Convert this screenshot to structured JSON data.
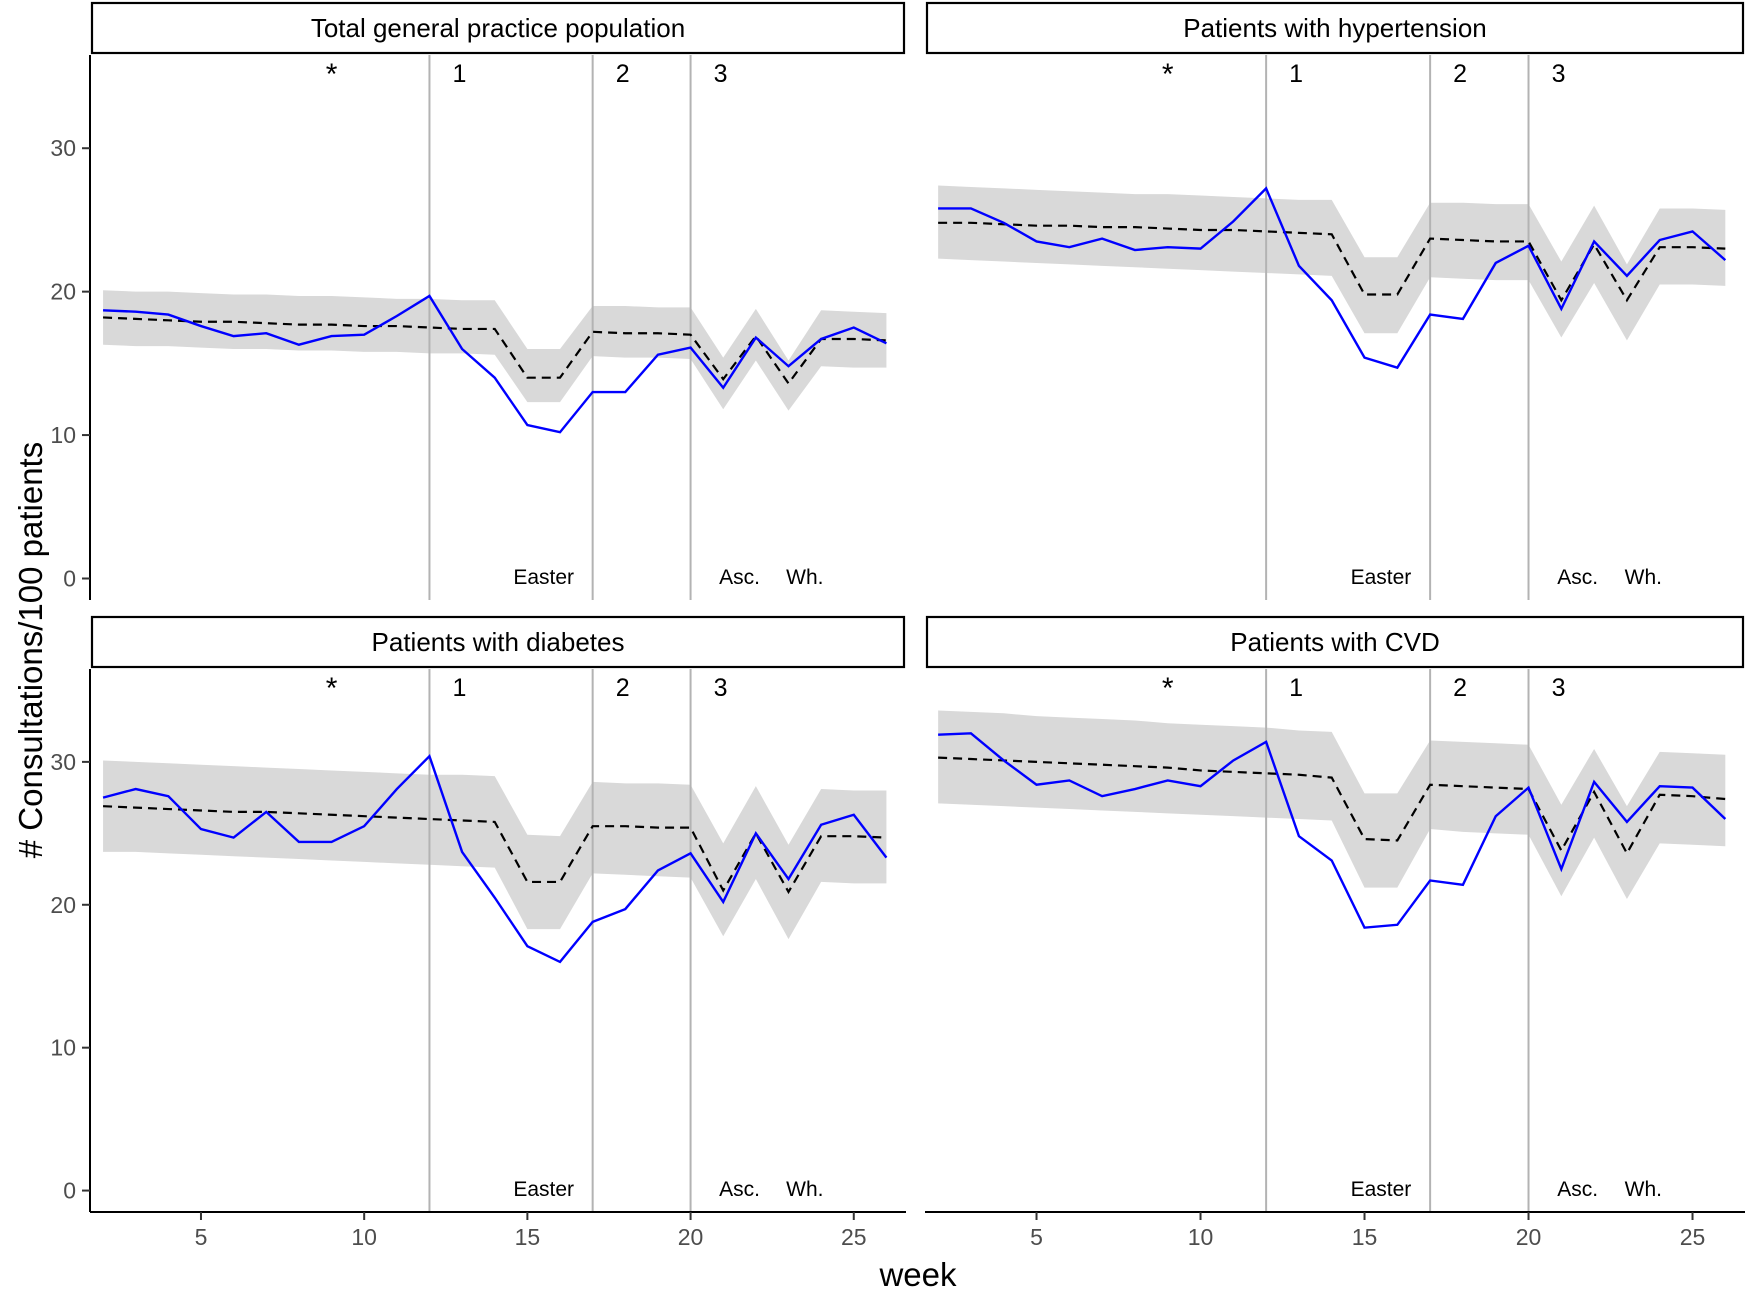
{
  "chart_data": {
    "type": "line",
    "xlabel": "week",
    "ylabel": "# Consultations/100 patients",
    "x_ticks": [
      5,
      10,
      15,
      20,
      25
    ],
    "xlim": [
      1.6,
      26.6
    ],
    "ylim": [
      -1.5,
      36.5
    ],
    "y_ticks": [
      0,
      10,
      20,
      30
    ],
    "weeks": [
      2,
      3,
      4,
      5,
      6,
      7,
      8,
      9,
      10,
      11,
      12,
      13,
      14,
      15,
      16,
      17,
      18,
      19,
      20,
      21,
      22,
      23,
      24,
      25,
      26
    ],
    "vertical_lines": [
      {
        "week": 12,
        "label": "1"
      },
      {
        "week": 17,
        "label": "2"
      },
      {
        "week": 20,
        "label": "3"
      }
    ],
    "star_marker": {
      "week": 9,
      "label": "*"
    },
    "holiday_labels": [
      {
        "week": 15.5,
        "label": "Easter"
      },
      {
        "week": 21.5,
        "label": "Asc."
      },
      {
        "week": 23.5,
        "label": "Wh."
      }
    ],
    "series_legend": {
      "observed": {
        "color": "#0000ff",
        "style": "solid"
      },
      "expected": {
        "color": "#000000",
        "style": "dashed"
      },
      "interval": {
        "color": "#d9d9d9",
        "style": "band"
      }
    },
    "panels": [
      {
        "title": "Total general practice population",
        "observed": [
          18.7,
          18.6,
          18.4,
          17.6,
          16.9,
          17.1,
          16.3,
          16.9,
          17.0,
          18.3,
          19.7,
          16.0,
          14.0,
          10.7,
          10.2,
          13.0,
          13.0,
          15.6,
          16.1,
          13.3,
          16.8,
          14.8,
          16.7,
          17.5,
          16.4
        ],
        "expected": [
          18.2,
          18.1,
          18.0,
          17.9,
          17.9,
          17.8,
          17.7,
          17.7,
          17.6,
          17.6,
          17.5,
          17.4,
          17.4,
          14.0,
          14.0,
          17.2,
          17.1,
          17.1,
          17.0,
          13.9,
          16.9,
          13.6,
          16.7,
          16.7,
          16.6
        ],
        "lower": [
          16.3,
          16.2,
          16.2,
          16.1,
          16.0,
          16.0,
          15.9,
          15.9,
          15.8,
          15.8,
          15.7,
          15.7,
          15.6,
          12.3,
          12.3,
          15.5,
          15.4,
          15.4,
          15.3,
          11.8,
          15.2,
          11.7,
          14.8,
          14.7,
          14.7
        ],
        "upper": [
          20.1,
          20.0,
          20.0,
          19.9,
          19.8,
          19.8,
          19.7,
          19.7,
          19.6,
          19.5,
          19.5,
          19.4,
          19.4,
          16.0,
          16.0,
          19.0,
          19.0,
          18.9,
          18.9,
          15.4,
          18.8,
          15.2,
          18.7,
          18.6,
          18.5
        ]
      },
      {
        "title": "Patients with hypertension",
        "observed": [
          25.8,
          25.8,
          24.8,
          23.5,
          23.1,
          23.7,
          22.9,
          23.1,
          23.0,
          24.9,
          27.2,
          21.8,
          19.4,
          15.4,
          14.7,
          18.4,
          18.1,
          22.0,
          23.2,
          18.8,
          23.5,
          21.1,
          23.6,
          24.2,
          22.2
        ],
        "expected": [
          24.8,
          24.8,
          24.7,
          24.6,
          24.6,
          24.5,
          24.5,
          24.4,
          24.3,
          24.3,
          24.2,
          24.1,
          24.0,
          19.8,
          19.8,
          23.7,
          23.6,
          23.5,
          23.5,
          19.4,
          23.3,
          19.4,
          23.1,
          23.1,
          23.0
        ],
        "lower": [
          22.3,
          22.2,
          22.1,
          22.0,
          21.9,
          21.8,
          21.7,
          21.6,
          21.5,
          21.4,
          21.3,
          21.2,
          21.1,
          17.1,
          17.1,
          21.0,
          20.9,
          20.8,
          20.8,
          16.8,
          20.6,
          16.6,
          20.5,
          20.5,
          20.4
        ],
        "upper": [
          27.4,
          27.3,
          27.2,
          27.1,
          27.0,
          26.9,
          26.8,
          26.8,
          26.7,
          26.6,
          26.5,
          26.4,
          26.4,
          22.4,
          22.4,
          26.2,
          26.2,
          26.1,
          26.1,
          22.1,
          26.0,
          21.9,
          25.8,
          25.8,
          25.7
        ]
      },
      {
        "title": "Patients with diabetes",
        "observed": [
          27.5,
          28.1,
          27.6,
          25.3,
          24.7,
          26.5,
          24.4,
          24.4,
          25.5,
          28.1,
          30.4,
          23.7,
          20.5,
          17.1,
          16.0,
          18.8,
          19.7,
          22.4,
          23.6,
          20.2,
          25.0,
          21.8,
          25.6,
          26.3,
          23.3
        ],
        "expected": [
          26.9,
          26.8,
          26.7,
          26.6,
          26.5,
          26.5,
          26.4,
          26.3,
          26.2,
          26.1,
          26.0,
          25.9,
          25.8,
          21.6,
          21.6,
          25.5,
          25.5,
          25.4,
          25.4,
          21.0,
          25.0,
          20.9,
          24.8,
          24.8,
          24.7
        ],
        "lower": [
          23.7,
          23.7,
          23.6,
          23.5,
          23.4,
          23.3,
          23.2,
          23.1,
          23.0,
          22.9,
          22.8,
          22.7,
          22.6,
          18.3,
          18.3,
          22.2,
          22.1,
          22.0,
          21.9,
          17.8,
          21.8,
          17.6,
          21.6,
          21.5,
          21.5
        ],
        "upper": [
          30.1,
          30.0,
          29.9,
          29.8,
          29.7,
          29.6,
          29.5,
          29.4,
          29.3,
          29.2,
          29.1,
          29.1,
          29.0,
          24.9,
          24.8,
          28.6,
          28.5,
          28.5,
          28.4,
          24.3,
          28.3,
          24.2,
          28.1,
          28.0,
          28.0
        ]
      },
      {
        "title": "Patients with CVD",
        "observed": [
          31.9,
          32.0,
          30.1,
          28.4,
          28.7,
          27.6,
          28.1,
          28.7,
          28.3,
          30.1,
          31.4,
          24.8,
          23.1,
          18.4,
          18.6,
          21.7,
          21.4,
          26.2,
          28.2,
          22.5,
          28.6,
          25.8,
          28.3,
          28.2,
          26.0
        ],
        "expected": [
          30.3,
          30.2,
          30.1,
          30.0,
          29.9,
          29.8,
          29.7,
          29.6,
          29.4,
          29.3,
          29.2,
          29.1,
          28.9,
          24.6,
          24.5,
          28.4,
          28.3,
          28.2,
          28.1,
          23.8,
          27.9,
          23.6,
          27.7,
          27.6,
          27.4
        ],
        "lower": [
          27.1,
          27.0,
          26.9,
          26.8,
          26.7,
          26.6,
          26.5,
          26.4,
          26.3,
          26.2,
          26.1,
          26.0,
          25.9,
          21.2,
          21.2,
          25.3,
          25.1,
          25.0,
          24.9,
          20.6,
          24.7,
          20.4,
          24.3,
          24.2,
          24.1
        ],
        "upper": [
          33.6,
          33.5,
          33.4,
          33.2,
          33.1,
          33.0,
          32.9,
          32.7,
          32.6,
          32.5,
          32.4,
          32.2,
          32.1,
          27.8,
          27.8,
          31.5,
          31.4,
          31.3,
          31.2,
          27.0,
          30.9,
          26.9,
          30.7,
          30.6,
          30.5
        ]
      }
    ]
  }
}
